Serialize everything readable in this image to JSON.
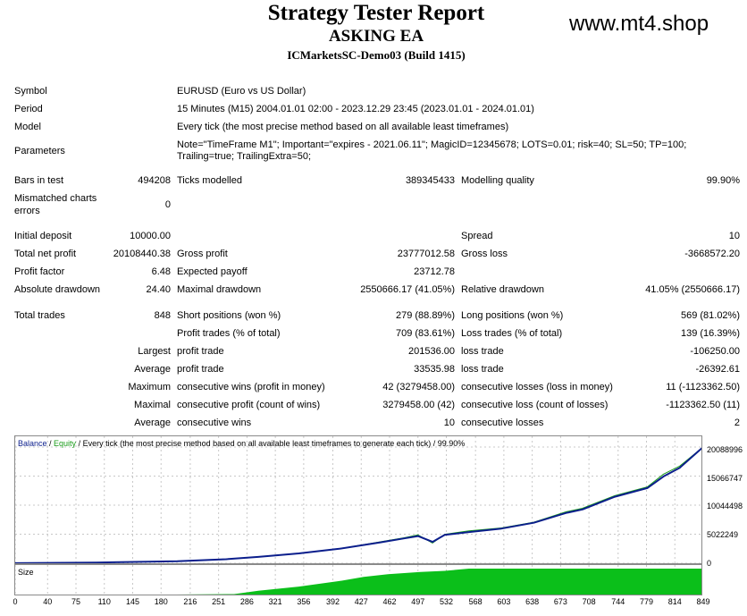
{
  "header": {
    "title": "Strategy Tester Report",
    "ea_name": "ASKING EA",
    "server": "ICMarketsSC-Demo03 (Build 1415)",
    "watermark": "www.mt4.shop"
  },
  "info": {
    "symbol_label": "Symbol",
    "symbol_value": "EURUSD (Euro vs US Dollar)",
    "period_label": "Period",
    "period_value": "15 Minutes (M15) 2004.01.01 02:00 - 2023.12.29 23:45 (2023.01.01 - 2024.01.01)",
    "model_label": "Model",
    "model_value": "Every tick (the most precise method based on all available least timeframes)",
    "parameters_label": "Parameters",
    "parameters_line1": "Note=\"TimeFrame M1\"; Important=\"expires - 2021.06.11\"; MagicID=12345678; LOTS=0.01; risk=40; SL=50; TP=100;",
    "parameters_line2": "Trailing=true; TrailingExtra=50;",
    "bars_label": "Bars in test",
    "bars_value": "494208",
    "ticks_label": "Ticks modelled",
    "ticks_value": "389345433",
    "quality_label": "Modelling quality",
    "quality_value": "99.90%",
    "mismatch_label_1": "Mismatched charts",
    "mismatch_label_2": "errors",
    "mismatch_value": "0"
  },
  "stats": {
    "initial_deposit_label": "Initial deposit",
    "initial_deposit_value": "10000.00",
    "spread_label": "Spread",
    "spread_value": "10",
    "net_profit_label": "Total net profit",
    "net_profit_value": "20108440.38",
    "gross_profit_label": "Gross profit",
    "gross_profit_value": "23777012.58",
    "gross_loss_label": "Gross loss",
    "gross_loss_value": "-3668572.20",
    "profit_factor_label": "Profit factor",
    "profit_factor_value": "6.48",
    "expected_payoff_label": "Expected payoff",
    "expected_payoff_value": "23712.78",
    "abs_dd_label": "Absolute drawdown",
    "abs_dd_value": "24.40",
    "max_dd_label": "Maximal drawdown",
    "max_dd_value": "2550666.17 (41.05%)",
    "rel_dd_label": "Relative drawdown",
    "rel_dd_value": "41.05% (2550666.17)",
    "total_trades_label": "Total trades",
    "total_trades_value": "848",
    "short_label": "Short positions (won %)",
    "short_value": "279 (88.89%)",
    "long_label": "Long positions (won %)",
    "long_value": "569 (81.02%)",
    "profit_trades_label": "Profit trades (% of total)",
    "profit_trades_value": "709 (83.61%)",
    "loss_trades_label": "Loss trades (% of total)",
    "loss_trades_value": "139 (16.39%)",
    "largest_label": "Largest",
    "largest_profit_label": "profit trade",
    "largest_profit_value": "201536.00",
    "largest_loss_label": "loss trade",
    "largest_loss_value": "-106250.00",
    "average_label": "Average",
    "average_profit_label": "profit trade",
    "average_profit_value": "33535.98",
    "average_loss_label": "loss trade",
    "average_loss_value": "-26392.61",
    "maximum_label": "Maximum",
    "max_consec_wins_label": "consecutive wins (profit in money)",
    "max_consec_wins_value": "42 (3279458.00)",
    "max_consec_losses_label": "consecutive losses (loss in money)",
    "max_consec_losses_value": "11 (-1123362.50)",
    "maximal_label": "Maximal",
    "maximal_profit_label": "consecutive profit (count of wins)",
    "maximal_profit_value": "3279458.00 (42)",
    "maximal_loss_label": "consecutive loss (count of losses)",
    "maximal_loss_value": "-1123362.50 (11)",
    "average2_label": "Average",
    "avg_consec_wins_label": "consecutive wins",
    "avg_consec_wins_value": "10",
    "avg_consec_losses_label": "consecutive losses",
    "avg_consec_losses_value": "2"
  },
  "chart": {
    "legend_balance": "Balance",
    "legend_slash": " / ",
    "legend_equity": "Equity",
    "legend_rest": " / Every tick (the most precise method based on all available least timeframes to generate each tick) / 99.90%",
    "size_label": "Size",
    "colors": {
      "balance": "#0b1e8c",
      "equity": "#1a9c1a",
      "size_bars": "#0bbf1a",
      "grid": "#c8c8c8"
    }
  },
  "chart_data": {
    "type": "line",
    "series": [
      {
        "name": "Balance",
        "x": [
          0,
          100,
          200,
          260,
          300,
          350,
          400,
          450,
          480,
          497,
          515,
          530,
          560,
          600,
          640,
          680,
          700,
          740,
          780,
          800,
          820,
          849
        ],
        "y": [
          10000,
          120000,
          350000,
          700000,
          1100000,
          1700000,
          2500000,
          3600000,
          4300000,
          4700000,
          3700000,
          4900000,
          5400000,
          6000000,
          7000000,
          8700000,
          9300000,
          11500000,
          13000000,
          15000000,
          16500000,
          20108440
        ]
      },
      {
        "name": "Equity",
        "x": [
          0,
          100,
          200,
          260,
          300,
          350,
          400,
          450,
          480,
          497,
          515,
          530,
          560,
          600,
          640,
          680,
          700,
          740,
          780,
          800,
          820,
          849
        ],
        "y": [
          10000,
          120000,
          350000,
          700000,
          1100000,
          1700000,
          2500000,
          3700000,
          4400000,
          4900000,
          3500000,
          5000000,
          5600000,
          6100000,
          7100000,
          8900000,
          9500000,
          11700000,
          13200000,
          15400000,
          16800000,
          20108440
        ]
      }
    ],
    "yticks": [
      "20088996",
      "15066747",
      "10044498",
      "5022249",
      "0"
    ],
    "xticks": [
      "0",
      "40",
      "75",
      "110",
      "145",
      "180",
      "216",
      "251",
      "286",
      "321",
      "356",
      "392",
      "427",
      "462",
      "497",
      "532",
      "568",
      "603",
      "638",
      "673",
      "708",
      "744",
      "779",
      "814",
      "849"
    ],
    "x_range": [
      0,
      849
    ],
    "y_range": [
      0,
      20088996
    ],
    "size_series": {
      "x": [
        0,
        270,
        300,
        350,
        400,
        430,
        460,
        500,
        530,
        560,
        849
      ],
      "y": [
        0.02,
        0.08,
        0.2,
        0.35,
        0.55,
        0.7,
        0.8,
        0.88,
        0.92,
        1.0,
        1.0
      ]
    }
  }
}
